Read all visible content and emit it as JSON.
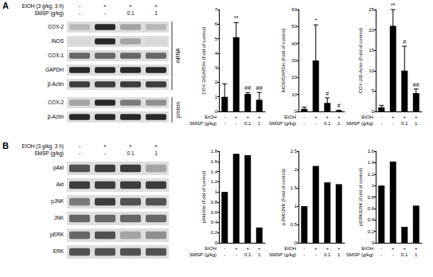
{
  "chart_data": [
    {
      "type": "bar",
      "ylabel": "COX-2/GAPDH (Fold of control)",
      "categories": [
        null,
        null,
        null,
        null
      ],
      "treatments": [
        {
          "label": "EtOH",
          "marks": [
            "-",
            "+",
            "+",
            "+"
          ]
        },
        {
          "label": "SMSP (g/kg)",
          "marks": [
            "-",
            "-",
            "0.1",
            "1"
          ]
        }
      ],
      "values": [
        1,
        5.1,
        1.2,
        0.8
      ],
      "errors": [
        0.9,
        1.0,
        0.1,
        0.5
      ],
      "annotations": [
        null,
        "**",
        "##",
        "##"
      ],
      "color": "#000000",
      "ylim": [
        0,
        7
      ],
      "yticks": [
        0,
        1,
        2,
        3,
        4,
        5,
        6,
        7
      ],
      "grid": false
    },
    {
      "type": "bar",
      "ylabel": "iNOS/GAPDH (Fold of control)",
      "categories": [
        null,
        null,
        null,
        null
      ],
      "treatments": [
        {
          "label": "EtOH",
          "marks": [
            "-",
            "+",
            "+",
            "+"
          ]
        },
        {
          "label": "SMSP (g/kg)",
          "marks": [
            "-",
            "-",
            "0.1",
            "1"
          ]
        }
      ],
      "values": [
        1.5,
        30,
        5,
        0.5
      ],
      "errors": [
        1,
        21,
        3,
        0.3
      ],
      "annotations": [
        null,
        "*",
        "#",
        "#"
      ],
      "color": "#000000",
      "ylim": [
        0,
        60
      ],
      "yticks": [
        0,
        10,
        20,
        30,
        40,
        50,
        60
      ],
      "grid": false
    },
    {
      "type": "bar",
      "ylabel": "COX-2/β-Actin (Fold of control)",
      "categories": [
        null,
        null,
        null,
        null
      ],
      "treatments": [
        {
          "label": "EtOH",
          "marks": [
            "-",
            "+",
            "+",
            "+"
          ]
        },
        {
          "label": "SMSP (g/kg)",
          "marks": [
            "-",
            "-",
            "0.1",
            "1"
          ]
        }
      ],
      "values": [
        1,
        21,
        10,
        4.5
      ],
      "errors": [
        0.5,
        4,
        6,
        1
      ],
      "annotations": [
        null,
        "**",
        "#",
        "##"
      ],
      "color": "#000000",
      "ylim": [
        0,
        25
      ],
      "yticks": [
        0,
        5,
        10,
        15,
        20,
        25
      ],
      "grid": false
    },
    {
      "type": "bar",
      "ylabel": "pAkt/Akt (Fold of control)",
      "categories": [
        null,
        null,
        null,
        null
      ],
      "treatments": [
        {
          "label": "EtOH",
          "marks": [
            "-",
            "+",
            "+",
            "+"
          ]
        },
        {
          "label": "SMSP (g/kg)",
          "marks": [
            "-",
            "-",
            "0.1",
            "1"
          ]
        }
      ],
      "values": [
        1,
        1.75,
        1.72,
        0.3
      ],
      "color": "#000000",
      "ylim": [
        0,
        1.8
      ],
      "yticks": [
        0,
        0.2,
        0.4,
        0.6,
        0.8,
        1,
        1.2,
        1.4,
        1.6,
        1.8
      ],
      "grid": false
    },
    {
      "type": "bar",
      "ylabel": "pJNK/JNK (Fold of control)",
      "categories": [
        null,
        null,
        null,
        null
      ],
      "treatments": [
        {
          "label": "EtOH",
          "marks": [
            "-",
            "+",
            "+",
            "+"
          ]
        },
        {
          "label": "SMSP (g/kg)",
          "marks": [
            "-",
            "-",
            "0.1",
            "1"
          ]
        }
      ],
      "values": [
        1,
        2.1,
        1.65,
        1.6
      ],
      "color": "#000000",
      "ylim": [
        0,
        2.5
      ],
      "yticks": [
        0,
        0.5,
        1,
        1.5,
        2,
        2.5
      ],
      "grid": false
    },
    {
      "type": "bar",
      "ylabel": "pERK/ERK (Fold of control)",
      "categories": [
        null,
        null,
        null,
        null
      ],
      "treatments": [
        {
          "label": "EtOH",
          "marks": [
            "-",
            "+",
            "+",
            "+"
          ]
        },
        {
          "label": "SMSP (g/kg)",
          "marks": [
            "-",
            "-",
            "0.1",
            "1"
          ]
        }
      ],
      "values": [
        1,
        1.42,
        0.28,
        0.65
      ],
      "color": "#000000",
      "ylim": [
        0,
        1.6
      ],
      "yticks": [
        0,
        0.2,
        0.4,
        0.6,
        0.8,
        1,
        1.2,
        1.4,
        1.6
      ],
      "grid": false
    }
  ],
  "blot_panels": [
    {
      "label": "A",
      "treatments": [
        {
          "label": "EtOH (3 g/kg, 3 h)",
          "marks": [
            "-",
            "+",
            "+",
            "+"
          ]
        },
        {
          "label": "SMSP (g/kg)",
          "marks": [
            "-",
            "-",
            "0.1",
            "1"
          ]
        }
      ],
      "groups": [
        {
          "label": "mRNA",
          "blots": [
            {
              "label": "COX-2",
              "intensity": [
                0.2,
                0.9,
                0.3,
                0.2
              ]
            },
            {
              "label": "iNOS",
              "intensity": [
                0.05,
                0.9,
                0.3,
                0.05
              ]
            },
            {
              "label": "COX-1",
              "intensity": [
                0.6,
                0.6,
                0.6,
                0.6
              ]
            },
            {
              "label": "GAPDH",
              "intensity": [
                0.9,
                0.9,
                0.9,
                0.9
              ]
            },
            {
              "label": "β-Actin",
              "intensity": [
                0.8,
                0.8,
                0.8,
                0.8
              ]
            }
          ]
        },
        {
          "label": "protein",
          "blots": [
            {
              "label": "COX-2",
              "intensity": [
                0.3,
                0.9,
                0.5,
                0.4
              ]
            },
            {
              "label": "β-Actin",
              "intensity": [
                0.9,
                0.9,
                0.9,
                0.9
              ]
            }
          ]
        }
      ]
    },
    {
      "label": "B",
      "treatments": [
        {
          "label": "EtOH (3 g/kg, 3 h)",
          "marks": [
            "-",
            "+",
            "+",
            "+"
          ]
        },
        {
          "label": "SMSP (g/kg)",
          "marks": [
            "-",
            "-",
            "0.1",
            "1"
          ]
        }
      ],
      "groups": [
        {
          "blots": [
            {
              "label": "pAkt",
              "intensity": [
                0.7,
                0.8,
                0.8,
                0.3
              ]
            },
            {
              "label": "Akt",
              "intensity": [
                0.8,
                0.8,
                0.8,
                0.8
              ]
            },
            {
              "label": "pJNK",
              "intensity": [
                0.5,
                0.8,
                0.7,
                0.7
              ]
            },
            {
              "label": "JNK",
              "intensity": [
                0.6,
                0.6,
                0.6,
                0.6
              ]
            },
            {
              "label": "pERK",
              "intensity": [
                0.6,
                0.7,
                0.3,
                0.4
              ]
            },
            {
              "label": "ERK",
              "intensity": [
                0.7,
                0.7,
                0.7,
                0.7
              ]
            }
          ]
        }
      ]
    }
  ]
}
